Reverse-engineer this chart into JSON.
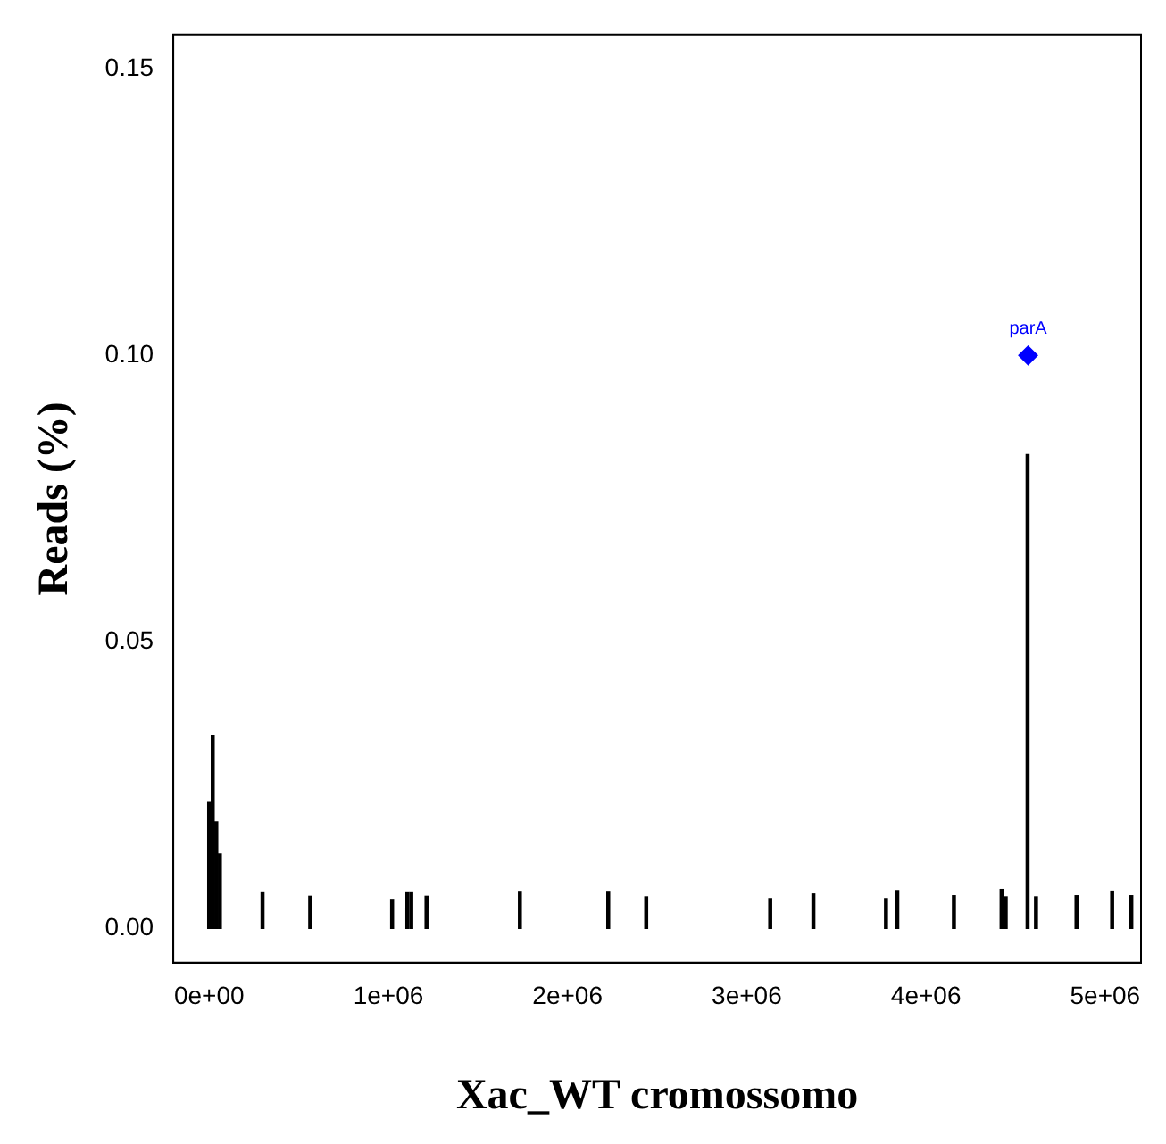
{
  "chart_data": {
    "type": "bar",
    "xlabel": "Xac_WT cromossomo",
    "ylabel": "Reads (%)",
    "xlim": [
      -200000,
      5200000
    ],
    "ylim": [
      -0.006,
      0.156
    ],
    "xticks": [
      {
        "value": 0,
        "label": "0e+00"
      },
      {
        "value": 1000000,
        "label": "1e+06"
      },
      {
        "value": 2000000,
        "label": "2e+06"
      },
      {
        "value": 3000000,
        "label": "3e+06"
      },
      {
        "value": 4000000,
        "label": "4e+06"
      },
      {
        "value": 5000000,
        "label": "5e+06"
      }
    ],
    "yticks": [
      {
        "value": 0,
        "label": "0.00"
      },
      0.05,
      {
        "value": 0.1,
        "label": "0.10"
      },
      0.15
    ],
    "grid": false,
    "legend": false,
    "series": [
      {
        "color": "#000000",
        "x": [
          0,
          20000,
          40000,
          60000,
          298000,
          564000,
          1021000,
          1106000,
          1128000,
          1213000,
          1734000,
          2227000,
          2439000,
          3131000,
          3372000,
          3777000,
          3840000,
          4156000,
          4422000,
          4445000,
          4567000,
          4614000,
          4840000,
          5039000,
          5146000
        ],
        "values": [
          0.022,
          0.0336,
          0.0186,
          0.013,
          0.0062,
          0.0056,
          0.0049,
          0.0062,
          0.0062,
          0.0056,
          0.0063,
          0.0063,
          0.0055,
          0.0052,
          0.006,
          0.0052,
          0.0066,
          0.0057,
          0.0068,
          0.0055,
          0.0827,
          0.0055,
          0.0057,
          0.0065,
          0.0057
        ]
      },
      {
        "type": "scatter",
        "name": "parA",
        "color": "#0000ff",
        "marker": "diamond",
        "x": [
          4570000
        ],
        "values": [
          0.1
        ]
      }
    ]
  }
}
